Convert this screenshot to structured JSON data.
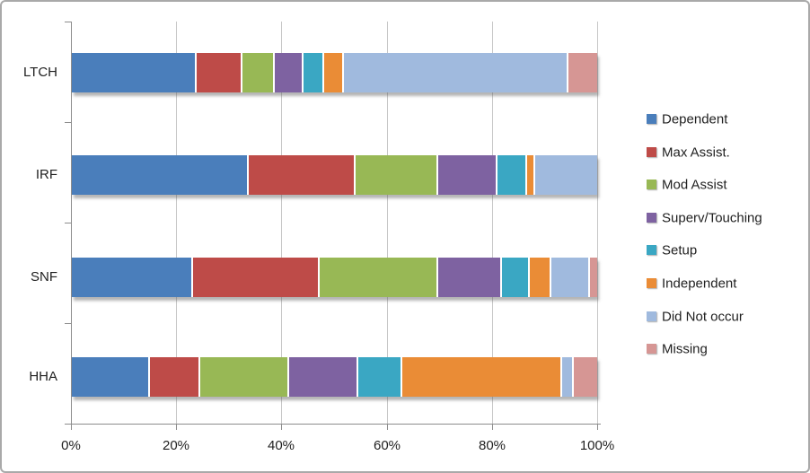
{
  "chart_data": {
    "type": "bar",
    "orientation": "horizontal",
    "stacked": true,
    "title": "",
    "categories": [
      "LTCH",
      "IRF",
      "SNF",
      "HHA"
    ],
    "series": [
      {
        "name": "Dependent",
        "color": "#4a7ebb",
        "values": [
          23.8,
          33.6,
          23.0,
          14.8
        ]
      },
      {
        "name": "Max Assist.",
        "color": "#be4b48",
        "values": [
          8.7,
          20.5,
          24.2,
          9.6
        ]
      },
      {
        "name": "Mod Assist",
        "color": "#98b855",
        "values": [
          6.2,
          15.7,
          22.5,
          16.9
        ]
      },
      {
        "name": "Superv/Touching",
        "color": "#7e62a1",
        "values": [
          5.4,
          11.2,
          12.1,
          13.2
        ]
      },
      {
        "name": "Setup",
        "color": "#3aa7c3",
        "values": [
          3.9,
          5.7,
          5.4,
          8.4
        ]
      },
      {
        "name": "Independent",
        "color": "#ea8c36",
        "values": [
          3.8,
          1.5,
          4.1,
          30.5
        ]
      },
      {
        "name": "Did Not occur",
        "color": "#a0bade",
        "values": [
          42.8,
          11.8,
          7.3,
          2.2
        ]
      },
      {
        "name": "Missing",
        "color": "#d69694",
        "values": [
          5.4,
          0.0,
          1.4,
          4.4
        ]
      }
    ],
    "x_axis": {
      "tick_labels": [
        "0%",
        "20%",
        "40%",
        "60%",
        "80%",
        "100%"
      ],
      "min": 0,
      "max": 100
    },
    "legend_position": "right",
    "grid": true
  },
  "colors": {
    "gridline": "#c6c6c6",
    "axis": "#8c8c8c",
    "text": "#1f1f1f",
    "frame_border": "#a9a9a9",
    "background": "#ffffff"
  }
}
